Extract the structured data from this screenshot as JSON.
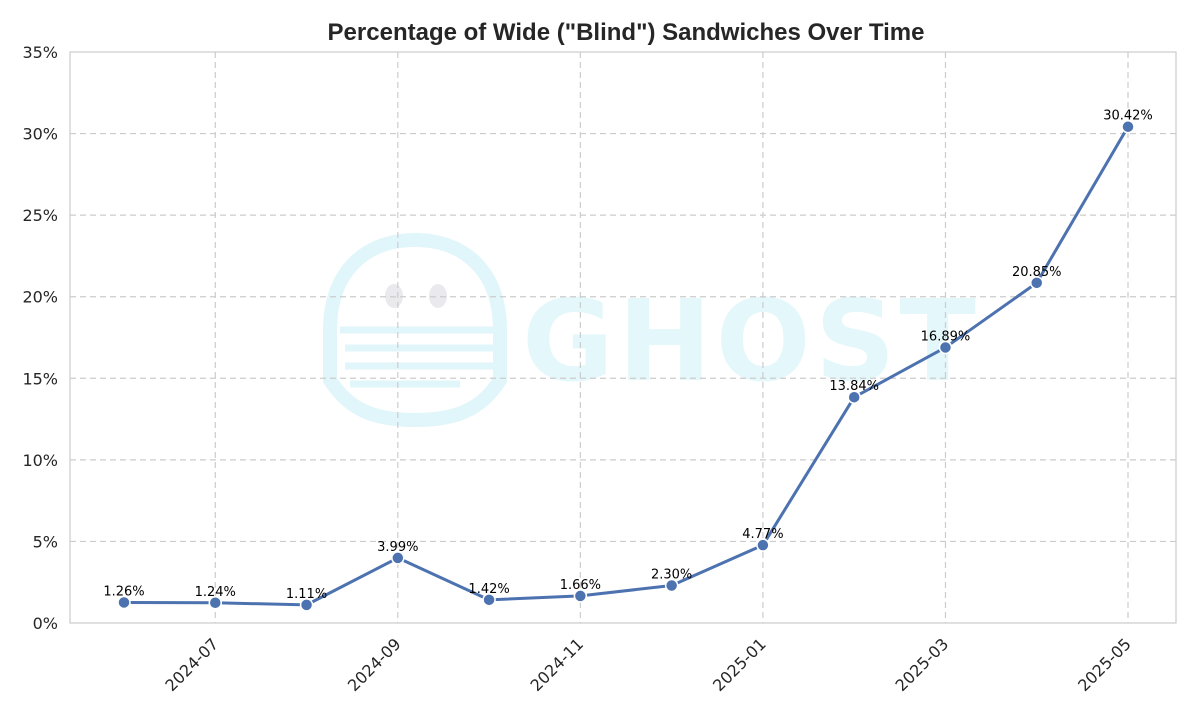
{
  "chart_data": {
    "type": "line",
    "title": "Percentage of Wide (\"Blind\") Sandwiches Over Time",
    "xlabel": "",
    "ylabel": "",
    "x": [
      "2024-06",
      "2024-07",
      "2024-08",
      "2024-09",
      "2024-10",
      "2024-11",
      "2024-12",
      "2025-01",
      "2025-02",
      "2025-03",
      "2025-04",
      "2025-05"
    ],
    "series": [
      {
        "name": "",
        "values": [
          1.26,
          1.24,
          1.11,
          3.99,
          1.42,
          1.66,
          2.3,
          4.77,
          13.84,
          16.89,
          20.85,
          30.42
        ]
      }
    ],
    "data_labels": [
      "1.26%",
      "1.24%",
      "1.11%",
      "3.99%",
      "1.42%",
      "1.66%",
      "2.30%",
      "4.77%",
      "13.84%",
      "16.89%",
      "20.85%",
      "30.42%"
    ],
    "ylim": [
      0,
      35
    ],
    "yticks": [
      0,
      5,
      10,
      15,
      20,
      25,
      30,
      35
    ],
    "ytick_labels": [
      "0%",
      "5%",
      "10%",
      "15%",
      "20%",
      "25%",
      "30%",
      "35%"
    ],
    "xticks": [
      "2024-07",
      "2024-09",
      "2024-11",
      "2025-01",
      "2025-03",
      "2025-05"
    ],
    "grid": true,
    "legend": "none",
    "line_color": "#4c72b0",
    "grid_color": "#cccccc",
    "watermark": {
      "text": "GHOST",
      "icon": "ghost-logo-icon",
      "color": "#e6f8fb"
    }
  }
}
